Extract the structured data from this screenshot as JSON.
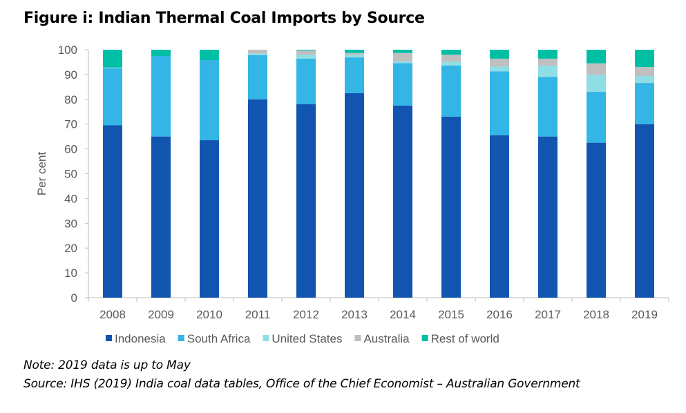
{
  "chart_data": {
    "type": "bar",
    "stacked": true,
    "title": "Figure i: Indian Thermal Coal Imports by Source",
    "ylabel": "Per cent",
    "xlabel": "",
    "ylim": [
      0,
      100
    ],
    "yticks": [
      0,
      10,
      20,
      30,
      40,
      50,
      60,
      70,
      80,
      90,
      100
    ],
    "grid": false,
    "legend": "bottom",
    "categories": [
      "2008",
      "2009",
      "2010",
      "2011",
      "2012",
      "2013",
      "2014",
      "2015",
      "2016",
      "2017",
      "2018",
      "2019"
    ],
    "series": [
      {
        "name": "Indonesia",
        "color": "#1155b0",
        "values": [
          69.5,
          65,
          63.5,
          80,
          78,
          82.5,
          77.5,
          73,
          65.5,
          65,
          62.5,
          70
        ]
      },
      {
        "name": "South Africa",
        "color": "#33b5e5",
        "values": [
          23,
          32.5,
          32.3,
          17.8,
          18.4,
          14.4,
          17.1,
          20.6,
          25.8,
          24,
          20.5,
          16.6
        ]
      },
      {
        "name": "United States",
        "color": "#8fdde5",
        "values": [
          0.3,
          0,
          0,
          0.7,
          1.6,
          1,
          0.7,
          1.6,
          1.9,
          4.6,
          6.9,
          2.8
        ]
      },
      {
        "name": "Australia",
        "color": "#bfbfbf",
        "values": [
          0,
          0,
          0,
          1.5,
          1.7,
          0.8,
          3.4,
          2.8,
          3.2,
          2.8,
          4.6,
          3.6
        ]
      },
      {
        "name": "Rest of world",
        "color": "#00bfa5",
        "values": [
          7.2,
          2.5,
          4.2,
          0,
          0.3,
          1.3,
          1.3,
          2,
          3.6,
          3.6,
          5.5,
          7
        ]
      }
    ]
  },
  "notes": {
    "note": "Note: 2019 data is up to May",
    "source": "Source: IHS (2019) India coal data tables, Office of the Chief Economist – Australian Government"
  }
}
